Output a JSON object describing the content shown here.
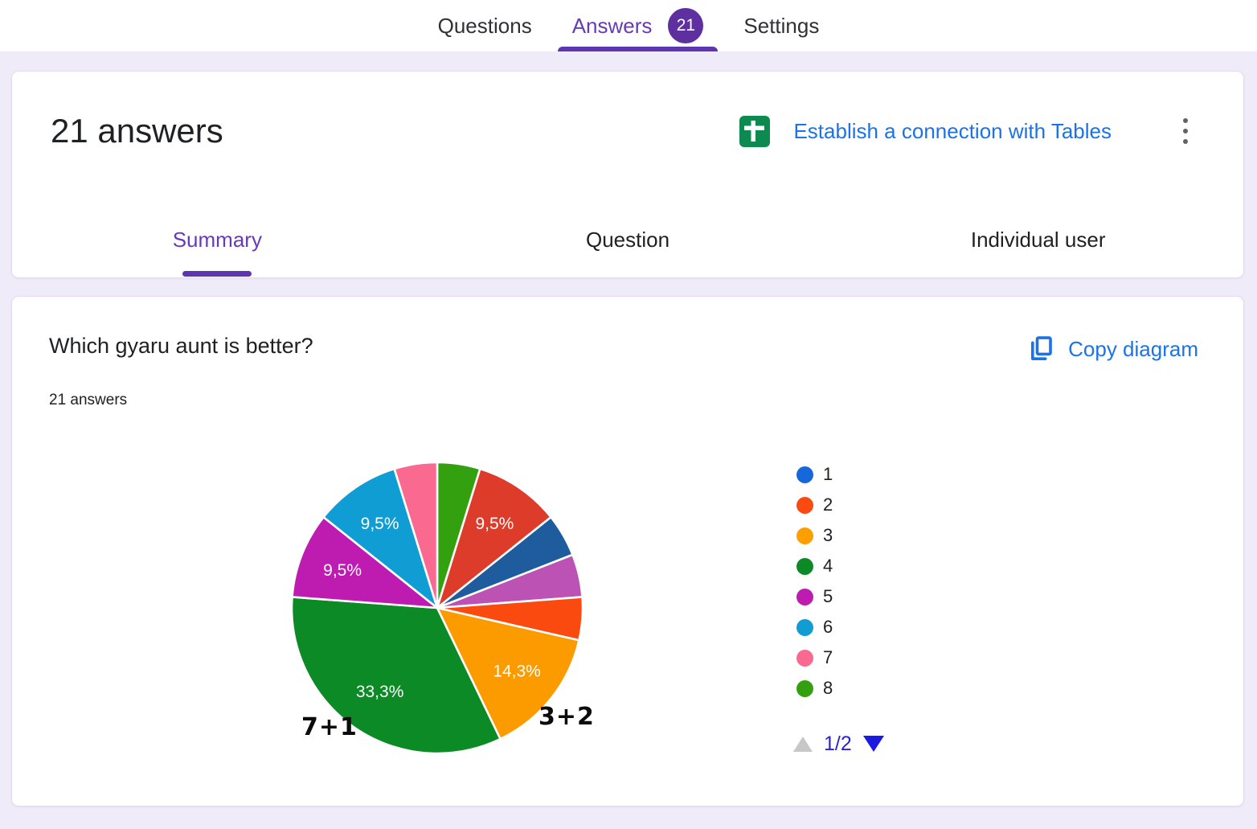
{
  "topbar": {
    "tabs": [
      {
        "label": "Questions"
      },
      {
        "label": "Answers",
        "badge": "21",
        "active": true
      },
      {
        "label": "Settings"
      }
    ]
  },
  "answers_card": {
    "title": "21 answers",
    "tables_link_label": "Establish a connection with Tables",
    "icons": {
      "tables": "sheets-table-icon",
      "menu": "kebab-menu-icon"
    },
    "tabs": [
      {
        "label": "Summary",
        "active": true
      },
      {
        "label": "Question"
      },
      {
        "label": "Individual user"
      }
    ]
  },
  "question_card": {
    "title": "Which gyaru aunt is better?",
    "answers_count": "21 answers",
    "copy_link_label": "Copy diagram",
    "annotations": [
      {
        "text": "7+1"
      },
      {
        "text": "3+2"
      }
    ],
    "pagination": {
      "text": "1/2",
      "up_enabled": false,
      "down_enabled": true
    }
  },
  "chart_data": {
    "type": "pie",
    "title": "Which gyaru aunt is better?",
    "total_answers": 21,
    "start_angle_deg": 0,
    "direction": "clockwise",
    "slices": [
      {
        "value": 1,
        "pct": 4.8,
        "label": "",
        "color": "#33A00F"
      },
      {
        "value": 2,
        "pct": 9.5,
        "label": "9,5%",
        "color": "#DE3C2B"
      },
      {
        "value": 1,
        "pct": 4.8,
        "label": "",
        "color": "#1E5C9E"
      },
      {
        "value": 1,
        "pct": 4.8,
        "label": "",
        "color": "#BC53B4"
      },
      {
        "value": 1,
        "pct": 4.8,
        "label": "",
        "color": "#FB4A0F"
      },
      {
        "value": 3,
        "pct": 14.3,
        "label": "14,3%",
        "color": "#FC9B00"
      },
      {
        "value": 7,
        "pct": 33.3,
        "label": "33,3%",
        "color": "#0C8A26"
      },
      {
        "value": 2,
        "pct": 9.5,
        "label": "9,5%",
        "color": "#BE1CB0"
      },
      {
        "value": 2,
        "pct": 9.5,
        "label": "9,5%",
        "color": "#109DD4"
      },
      {
        "value": 1,
        "pct": 4.8,
        "label": "",
        "color": "#FA6990"
      }
    ],
    "legend": [
      {
        "label": "1",
        "color": "#1767DC"
      },
      {
        "label": "2",
        "color": "#FB4A0F"
      },
      {
        "label": "3",
        "color": "#FF9E00"
      },
      {
        "label": "4",
        "color": "#0C8A26"
      },
      {
        "label": "5",
        "color": "#BE1CB0"
      },
      {
        "label": "6",
        "color": "#109DD4"
      },
      {
        "label": "7",
        "color": "#FA6990"
      },
      {
        "label": "8",
        "color": "#33A00F"
      }
    ],
    "legend_position": "right",
    "legend_page": "1/2"
  }
}
